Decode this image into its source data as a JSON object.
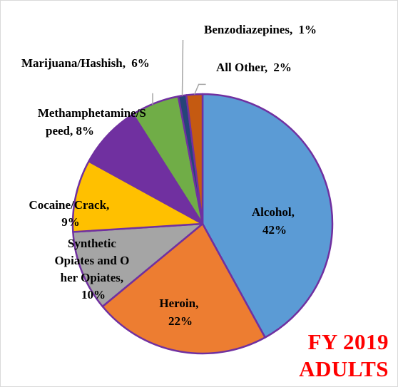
{
  "chart_data": {
    "type": "pie",
    "title": "",
    "caption": [
      "FY 2019",
      "ADULTS"
    ],
    "slices": [
      {
        "label": "Alcohol,",
        "pct": "42%",
        "value": 42,
        "color": "#5b9bd5"
      },
      {
        "label": "Heroin,",
        "pct": "22%",
        "value": 22,
        "color": "#ed7d31"
      },
      {
        "label": "Synthetic Opiates and Other Opiates,",
        "pct": "10%",
        "value": 10,
        "color": "#a5a5a5"
      },
      {
        "label": "Cocaine/Crack,",
        "pct": "9%",
        "value": 9,
        "color": "#ffc000"
      },
      {
        "label": "Methamphetamine/Speed,",
        "pct": "8%",
        "value": 8,
        "color": "#7030a0"
      },
      {
        "label": "Marijuana/Hashish,",
        "pct": "6%",
        "value": 6,
        "color": "#70ad47"
      },
      {
        "label": "Benzodiazepines,",
        "pct": "1%",
        "value": 1,
        "color": "#264478"
      },
      {
        "label": "All Other,",
        "pct": "2%",
        "value": 2,
        "color": "#c55a11"
      }
    ],
    "border_color": "#7030a0"
  }
}
